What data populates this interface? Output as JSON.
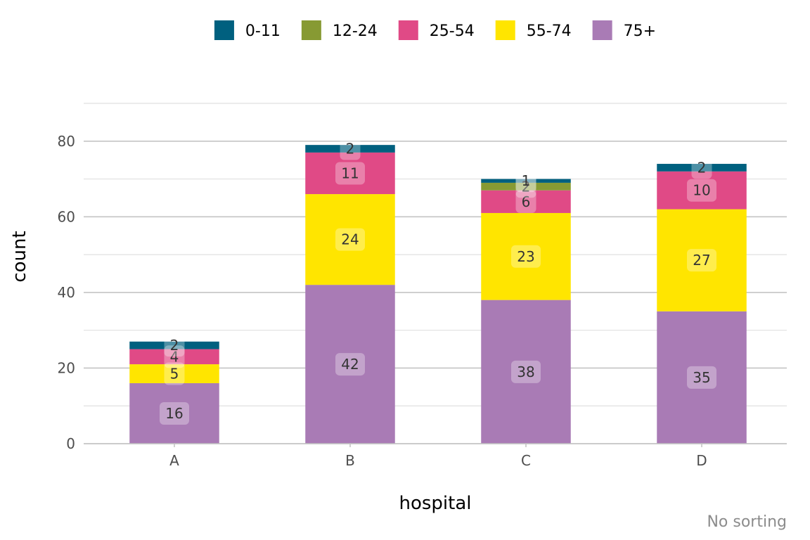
{
  "chart_data": {
    "type": "bar",
    "stacked": true,
    "categories": [
      "A",
      "B",
      "C",
      "D"
    ],
    "series": [
      {
        "name": "0-11",
        "color": "#00607f",
        "values": [
          2,
          2,
          1,
          2
        ]
      },
      {
        "name": "12-24",
        "color": "#879a33",
        "values": [
          0,
          0,
          2,
          0
        ]
      },
      {
        "name": "25-54",
        "color": "#e04a86",
        "values": [
          4,
          11,
          6,
          10
        ]
      },
      {
        "name": "55-74",
        "color": "#ffe500",
        "values": [
          5,
          24,
          23,
          27
        ]
      },
      {
        "name": "75+",
        "color": "#a97bb5",
        "values": [
          16,
          42,
          38,
          35
        ]
      }
    ],
    "stack_order": [
      "75+",
      "55-74",
      "25-54",
      "12-24",
      "0-11"
    ],
    "xlabel": "hospital",
    "ylabel": "count",
    "ylim": [
      0,
      90
    ],
    "yticks": [
      0,
      20,
      40,
      60,
      80
    ],
    "caption": "No sorting",
    "legend_position": "top",
    "grid": true
  }
}
